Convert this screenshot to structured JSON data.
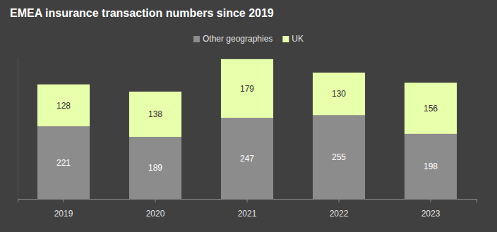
{
  "chart_data": {
    "type": "bar",
    "title": "EMEA insurance transaction numbers since 2019",
    "categories": [
      "2019",
      "2020",
      "2021",
      "2022",
      "2023"
    ],
    "series": [
      {
        "name": "Other geographies",
        "color": "#8c8c8c",
        "values": [
          221,
          189,
          247,
          255,
          198
        ]
      },
      {
        "name": "UK",
        "color": "#e8ffac",
        "values": [
          128,
          138,
          179,
          130,
          156
        ]
      }
    ],
    "stacked": true,
    "data_labels": true,
    "legend": "top",
    "tick_labels": "x",
    "grid": false,
    "ylim": [
      0,
      430
    ]
  }
}
